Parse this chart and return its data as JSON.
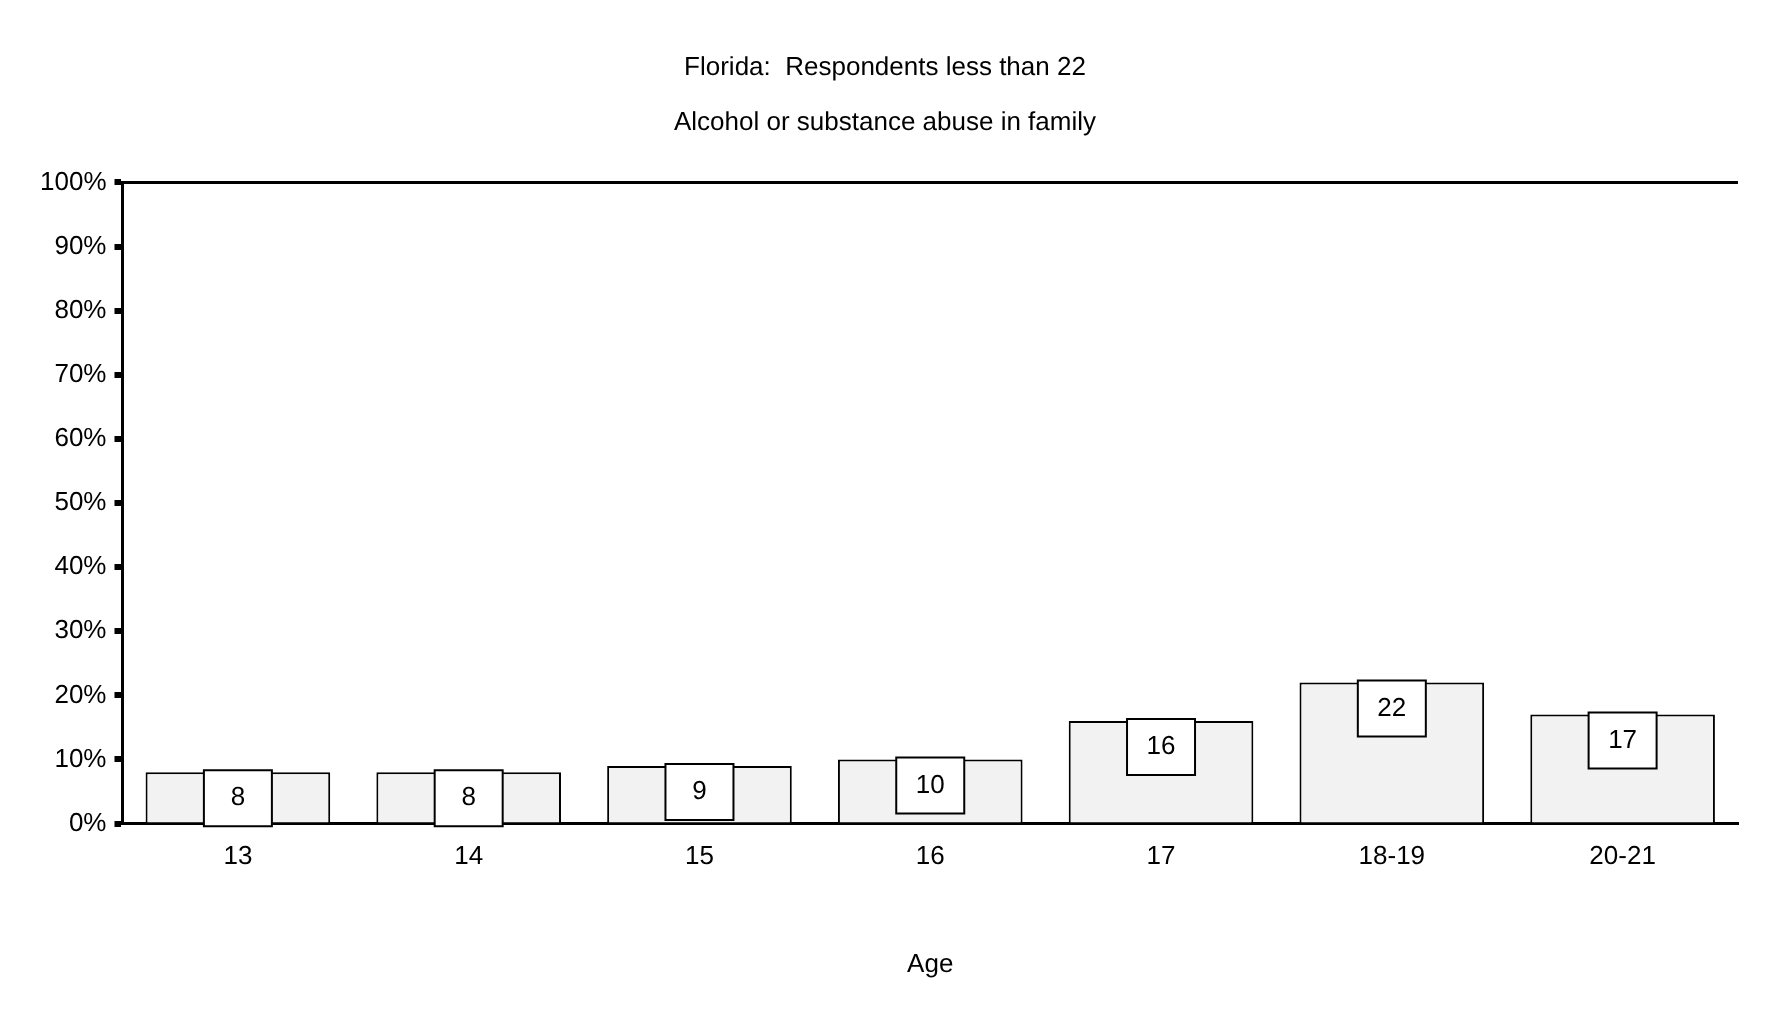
{
  "chart_data": {
    "type": "bar",
    "title": "Florida:  Respondents less than 22",
    "subtitle": "Alcohol or substance abuse in family",
    "xlabel": "Age",
    "categories": [
      "13",
      "14",
      "15",
      "16",
      "17",
      "18-19",
      "20-21"
    ],
    "values": [
      8,
      8,
      9,
      10,
      16,
      22,
      17
    ],
    "color": "#f2f2f2",
    "ylim": [
      0,
      100
    ],
    "yticks": [
      {
        "value": 0,
        "label": "0%"
      },
      {
        "value": 10,
        "label": "10%"
      },
      {
        "value": 20,
        "label": "20%"
      },
      {
        "value": 30,
        "label": "30%"
      },
      {
        "value": 40,
        "label": "40%"
      },
      {
        "value": 50,
        "label": "50%"
      },
      {
        "value": 60,
        "label": "60%"
      },
      {
        "value": 70,
        "label": "70%"
      },
      {
        "value": 80,
        "label": "80%"
      },
      {
        "value": 90,
        "label": "90%"
      },
      {
        "value": 100,
        "label": "100%"
      }
    ],
    "grid": false,
    "legend": false,
    "data_labels": true
  }
}
